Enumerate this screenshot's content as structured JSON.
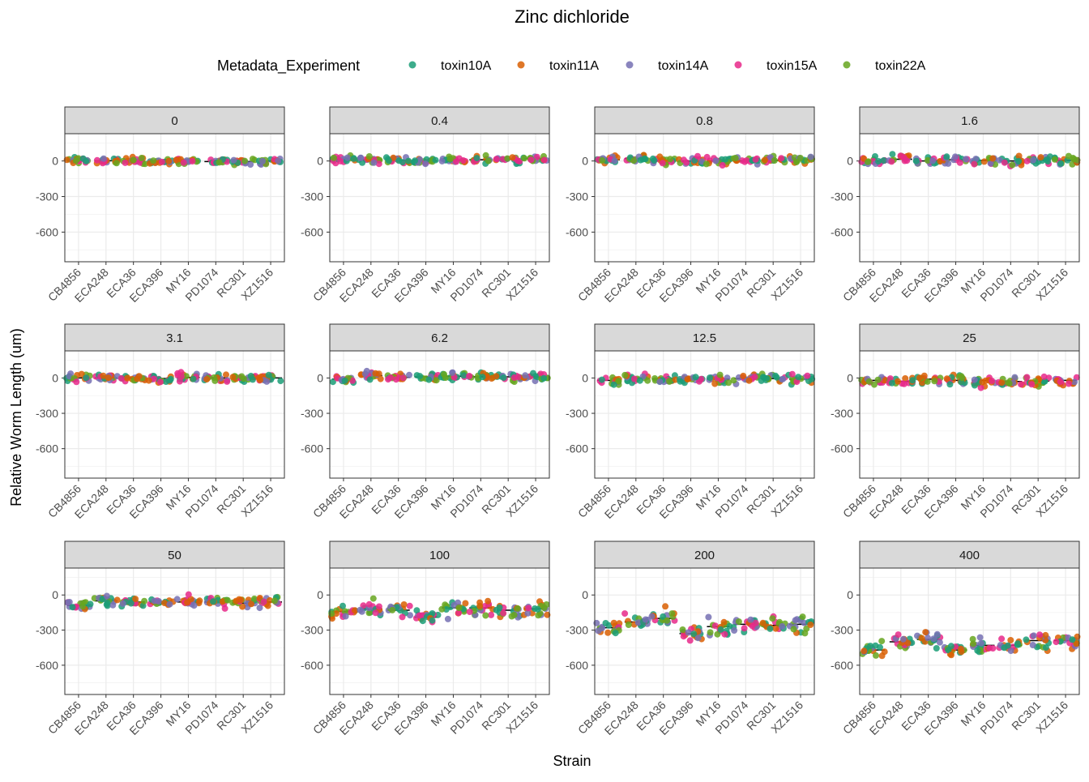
{
  "chart_data": {
    "type": "scatter",
    "title": "Zinc dichloride",
    "xlabel": "Strain",
    "ylabel": "Relative Worm Length (um)",
    "legend": {
      "title": "Metadata_Experiment",
      "placement": "top",
      "entries": [
        {
          "name": "toxin10A",
          "color": "#1B9E77"
        },
        {
          "name": "toxin11A",
          "color": "#D95F02"
        },
        {
          "name": "toxin14A",
          "color": "#7570B3"
        },
        {
          "name": "toxin15A",
          "color": "#E7298A"
        },
        {
          "name": "toxin22A",
          "color": "#66A61E"
        }
      ]
    },
    "strains": [
      "CB4856",
      "ECA248",
      "ECA36",
      "ECA396",
      "MY16",
      "PD1074",
      "RC301",
      "XZ1516"
    ],
    "ylim": [
      -850,
      230
    ],
    "yticks": [
      {
        "value": 0,
        "label": "0"
      },
      {
        "value": -300,
        "label": "-300"
      },
      {
        "value": -600,
        "label": "-600"
      }
    ],
    "grid": true,
    "facet_layout": {
      "rows": 3,
      "cols": 4
    },
    "facets": [
      {
        "label": "0",
        "means": [
          5,
          2,
          0,
          -5,
          0,
          -5,
          -5,
          0
        ],
        "spread": 22
      },
      {
        "label": "0.4",
        "means": [
          15,
          10,
          5,
          0,
          5,
          10,
          15,
          20
        ],
        "spread": 25
      },
      {
        "label": "0.8",
        "means": [
          10,
          20,
          5,
          0,
          0,
          0,
          5,
          10
        ],
        "spread": 28
      },
      {
        "label": "1.6",
        "means": [
          0,
          15,
          0,
          10,
          5,
          0,
          5,
          5
        ],
        "spread": 32
      },
      {
        "label": "3.1",
        "means": [
          0,
          0,
          0,
          -5,
          5,
          0,
          0,
          0
        ],
        "spread": 25
      },
      {
        "label": "6.2",
        "means": [
          -10,
          20,
          5,
          10,
          15,
          10,
          10,
          10
        ],
        "spread": 28
      },
      {
        "label": "12.5",
        "means": [
          -20,
          0,
          -10,
          -10,
          -10,
          -5,
          -5,
          -10
        ],
        "spread": 32
      },
      {
        "label": "25",
        "means": [
          -20,
          -30,
          -10,
          -20,
          -20,
          -30,
          -25,
          -20
        ],
        "spread": 35
      },
      {
        "label": "50",
        "means": [
          -90,
          -50,
          -60,
          -70,
          -60,
          -60,
          -70,
          -60
        ],
        "spread": 35
      },
      {
        "label": "100",
        "means": [
          -140,
          -120,
          -130,
          -190,
          -110,
          -110,
          -130,
          -120
        ],
        "spread": 50
      },
      {
        "label": "200",
        "means": [
          -280,
          -230,
          -200,
          -330,
          -270,
          -250,
          -260,
          -250
        ],
        "spread": 60
      },
      {
        "label": "400",
        "means": [
          -470,
          -400,
          -380,
          -470,
          -430,
          -430,
          -390,
          -390
        ],
        "spread": 55
      }
    ]
  }
}
